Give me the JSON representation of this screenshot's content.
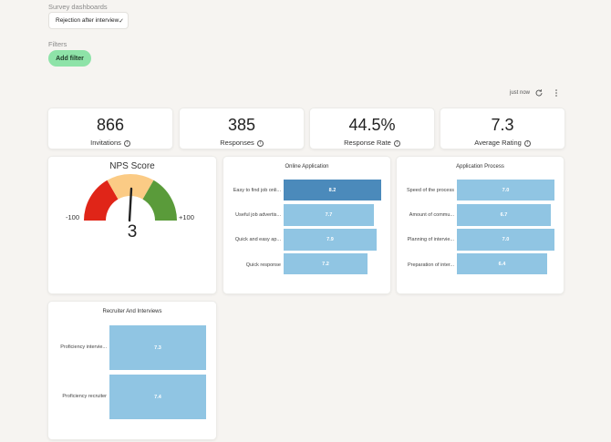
{
  "header": {
    "dashboards_label": "Survey dashboards",
    "selected_dashboard": "Rejection after interview",
    "filters_label": "Filters",
    "add_filter_label": "Add filter"
  },
  "toolbar": {
    "updated_text": "just now",
    "refresh_icon": "refresh-icon",
    "more_icon": "more-vertical-icon"
  },
  "stats": [
    {
      "value": "866",
      "label": "Invitations"
    },
    {
      "value": "385",
      "label": "Responses"
    },
    {
      "value": "44.5%",
      "label": "Response Rate"
    },
    {
      "value": "7.3",
      "label": "Average Rating"
    }
  ],
  "nps": {
    "title": "NPS Score",
    "score": "3",
    "min_label": "-100",
    "max_label": "+100",
    "colors": {
      "detractors": "#e02518",
      "passives": "#fbcb85",
      "promoters": "#5a9b3a"
    }
  },
  "online_application": {
    "title": "Online Application",
    "rows": [
      {
        "label": "Easy to find job onli...",
        "value": "8.2"
      },
      {
        "label": "Useful job advertis...",
        "value": "7.7"
      },
      {
        "label": "Quick and easy ap...",
        "value": "7.9"
      },
      {
        "label": "Quick response",
        "value": "7.2"
      }
    ]
  },
  "application_process": {
    "title": "Application Process",
    "rows": [
      {
        "label": "Speed of the process",
        "value": "7.0"
      },
      {
        "label": "Amount of commu...",
        "value": "6.7"
      },
      {
        "label": "Planning of intervie...",
        "value": "7.0"
      },
      {
        "label": "Preparation of inter...",
        "value": "6.4"
      }
    ]
  },
  "recruiter": {
    "title": "Recruiter And Interviews",
    "rows": [
      {
        "label": "Proficiency intervie...",
        "value": "7.3"
      },
      {
        "label": "Proficiency recruiter",
        "value": "7.4"
      }
    ]
  },
  "colors": {
    "bar_light": "#90c5e3",
    "bar_dark": "#4b8abb",
    "accent_green": "#8ee3a8"
  }
}
